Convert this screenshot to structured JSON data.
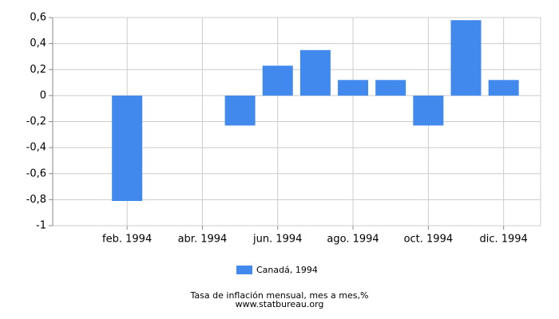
{
  "chart_data": {
    "type": "bar",
    "categories": [
      null,
      "feb. 1994",
      null,
      "abr. 1994",
      null,
      "jun. 1994",
      null,
      "ago. 1994",
      null,
      "oct. 1994",
      null,
      "dic. 1994"
    ],
    "series": [
      {
        "name": "Canadá, 1994",
        "color": "#4189ed",
        "values": [
          0,
          -0.81,
          0,
          0,
          -0.23,
          0.23,
          0.35,
          0.12,
          0.12,
          -0.23,
          0.58,
          0.12
        ]
      }
    ],
    "ylim": [
      -1,
      0.6
    ],
    "yticks": [
      -1,
      {
        "value": -0.8,
        "label": "-0,8"
      },
      {
        "value": -0.6,
        "label": "-0,6"
      },
      {
        "value": -0.4,
        "label": "-0,4"
      },
      {
        "value": -0.2,
        "label": "-0,2"
      },
      0,
      {
        "value": 0.2,
        "label": "0,2"
      },
      {
        "value": 0.4,
        "label": "0,4"
      },
      {
        "value": 0.6,
        "label": "0,6"
      }
    ],
    "grid": true,
    "legend": "bottom",
    "subtitle": "Tasa de inflación mensual, mes a mes,%",
    "source": "www.statbureau.org"
  }
}
